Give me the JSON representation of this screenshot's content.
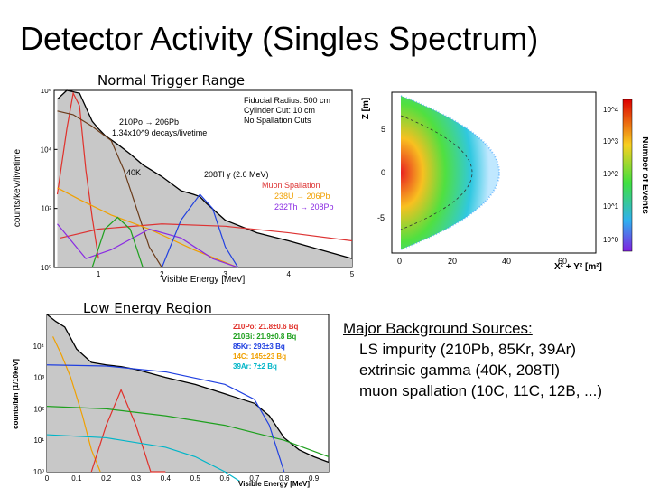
{
  "slide": {
    "title": "Detector Activity (Singles Spectrum)",
    "label_top": "Normal Trigger Range",
    "label_bottom": "Low Energy Region"
  },
  "notes": {
    "heading": "Major Background Sources:",
    "items": [
      "LS impurity (210Pb, 85Kr, 39Ar)",
      "extrinsic gamma (40K, 208Tl)",
      "muon spallation (10C, 11C, 12B, ...)"
    ]
  },
  "colors": {
    "fill": "#c8c8c8",
    "c210": "#e0302a",
    "c40k": "#6a3b1a",
    "cmuon": "#d33",
    "cU": "#f0a000",
    "cTh": "#8a2be2",
    "cTl": "#2040e0",
    "cgreen": "#1ea01e",
    "ccyan": "#00b5c8"
  },
  "chart_data": [
    {
      "type": "line",
      "name": "normal-trigger-spectrum",
      "ylabel": "counts/keV/livetime",
      "xlabel": "Visible Energy [MeV]",
      "x_ticks": [
        "1",
        "2",
        "3",
        "4",
        "5"
      ],
      "xlim": [
        0.3,
        5
      ],
      "ylim": [
        1,
        1000000
      ],
      "yscale": "log",
      "y_ticks": [
        "10^0",
        "10^2",
        "10^4",
        "10^6"
      ],
      "annotations": [
        "Fiducial Radius: 500 cm",
        "Cylinder Cut: 10 cm",
        "No Spallation Cuts",
        "210Po → 206Pb",
        "1.34x10^9 decays/livetime",
        "40K",
        "208Tl γ (2.6 MeV)",
        "Muon Spallation",
        "238U → 206Pb",
        "232Th → 208Pb"
      ],
      "series": [
        {
          "key": "data",
          "x": [
            0.35,
            0.5,
            0.7,
            0.9,
            1.0,
            1.1,
            1.3,
            1.5,
            1.7,
            2.0,
            2.3,
            2.5,
            2.6,
            2.7,
            3.0,
            3.5,
            4.0,
            4.5,
            5.0
          ],
          "y": [
            500000,
            1000000,
            800000,
            90000,
            50000,
            30000,
            15000,
            7000,
            3000,
            1200,
            400,
            300,
            250,
            150,
            40,
            15,
            8,
            4,
            2
          ]
        },
        {
          "key": "pb210",
          "x": [
            0.35,
            0.5,
            0.6,
            0.7,
            0.8,
            0.9,
            1.0
          ],
          "y": [
            300,
            50000,
            800000,
            300000,
            2000,
            50,
            2
          ]
        },
        {
          "key": "k40",
          "x": [
            0.35,
            0.6,
            0.9,
            1.2,
            1.4,
            1.6,
            1.8,
            2.0
          ],
          "y": [
            200000,
            150000,
            60000,
            20000,
            2000,
            100,
            5,
            1
          ]
        },
        {
          "key": "muon",
          "x": [
            0.4,
            1.0,
            2.0,
            3.0,
            4.0,
            5.0
          ],
          "y": [
            10,
            20,
            30,
            25,
            15,
            8
          ]
        },
        {
          "key": "u238",
          "x": [
            0.35,
            0.7,
            1.2,
            1.8,
            2.5,
            3.2
          ],
          "y": [
            500,
            200,
            60,
            20,
            4,
            1
          ]
        },
        {
          "key": "th232",
          "x": [
            0.35,
            0.8,
            1.2,
            1.8,
            2.3,
            2.8,
            3.2
          ],
          "y": [
            30,
            2,
            4,
            20,
            10,
            2,
            1
          ]
        },
        {
          "key": "tl208",
          "x": [
            2.0,
            2.3,
            2.6,
            2.8,
            3.0,
            3.2
          ],
          "y": [
            1,
            40,
            300,
            100,
            5,
            1
          ]
        },
        {
          "key": "green",
          "x": [
            0.9,
            1.1,
            1.3,
            1.5,
            1.7
          ],
          "y": [
            1,
            20,
            50,
            20,
            1
          ]
        }
      ]
    },
    {
      "type": "heatmap",
      "name": "vertex-distribution",
      "ylabel": "Z [m]",
      "xlabel": "X² + Y² [m²]",
      "x_ticks": [
        "0",
        "20",
        "40",
        "60"
      ],
      "y_ticks": [
        "5",
        "0",
        "-5"
      ],
      "colorbar_label": "Number of Events",
      "colorbar_ticks": [
        "10^4",
        "10^3",
        "10^2",
        "10^1",
        "10^0"
      ]
    },
    {
      "type": "line",
      "name": "low-energy-spectrum",
      "ylabel": "counts/bin [1/10keV]",
      "xlabel": "Visible Energy [MeV]",
      "x_ticks": [
        "0",
        "0.1",
        "0.2",
        "0.3",
        "0.4",
        "0.5",
        "0.6",
        "0.7",
        "0.8",
        "0.9"
      ],
      "xlim": [
        0,
        0.95
      ],
      "ylim": [
        1,
        100000
      ],
      "yscale": "log",
      "y_ticks": [
        "10^0",
        "10^1",
        "10^2",
        "10^3",
        "10^4"
      ],
      "legend": [
        {
          "name": "210Po: 21.8±0.6 Bq",
          "color": "#e0302a"
        },
        {
          "name": "210Bi: 21.9±0.8 Bq",
          "color": "#1ea01e"
        },
        {
          "name": "85Kr: 293±3 Bq",
          "color": "#2040e0"
        },
        {
          "name": "14C: 145±23 Bq",
          "color": "#f0a000"
        },
        {
          "name": "39Ar: 7±2 Bq",
          "color": "#00b5c8"
        }
      ],
      "series": [
        {
          "key": "data",
          "x": [
            0.0,
            0.03,
            0.06,
            0.1,
            0.15,
            0.2,
            0.25,
            0.3,
            0.4,
            0.5,
            0.6,
            0.7,
            0.75,
            0.8,
            0.85,
            0.9,
            0.95
          ],
          "y": [
            100000,
            60000,
            40000,
            8000,
            3000,
            2500,
            2200,
            1800,
            1000,
            600,
            300,
            150,
            60,
            12,
            5,
            3,
            2
          ]
        },
        {
          "key": "c14",
          "x": [
            0.02,
            0.05,
            0.08,
            0.12,
            0.15,
            0.18
          ],
          "y": [
            20000,
            5000,
            1000,
            60,
            5,
            1
          ]
        },
        {
          "key": "po210",
          "x": [
            0.15,
            0.2,
            0.25,
            0.3,
            0.35,
            0.4
          ],
          "y": [
            1,
            30,
            400,
            30,
            1,
            1
          ]
        },
        {
          "key": "bi210",
          "x": [
            0.0,
            0.2,
            0.4,
            0.6,
            0.8,
            0.95
          ],
          "y": [
            120,
            100,
            60,
            30,
            10,
            3
          ]
        },
        {
          "key": "kr85",
          "x": [
            0.0,
            0.2,
            0.4,
            0.6,
            0.7,
            0.75,
            0.8
          ],
          "y": [
            2500,
            2300,
            1500,
            600,
            200,
            30,
            1
          ]
        },
        {
          "key": "ar39",
          "x": [
            0.0,
            0.2,
            0.4,
            0.5,
            0.6,
            0.65
          ],
          "y": [
            15,
            12,
            6,
            3,
            1,
            0.5
          ]
        }
      ]
    }
  ]
}
